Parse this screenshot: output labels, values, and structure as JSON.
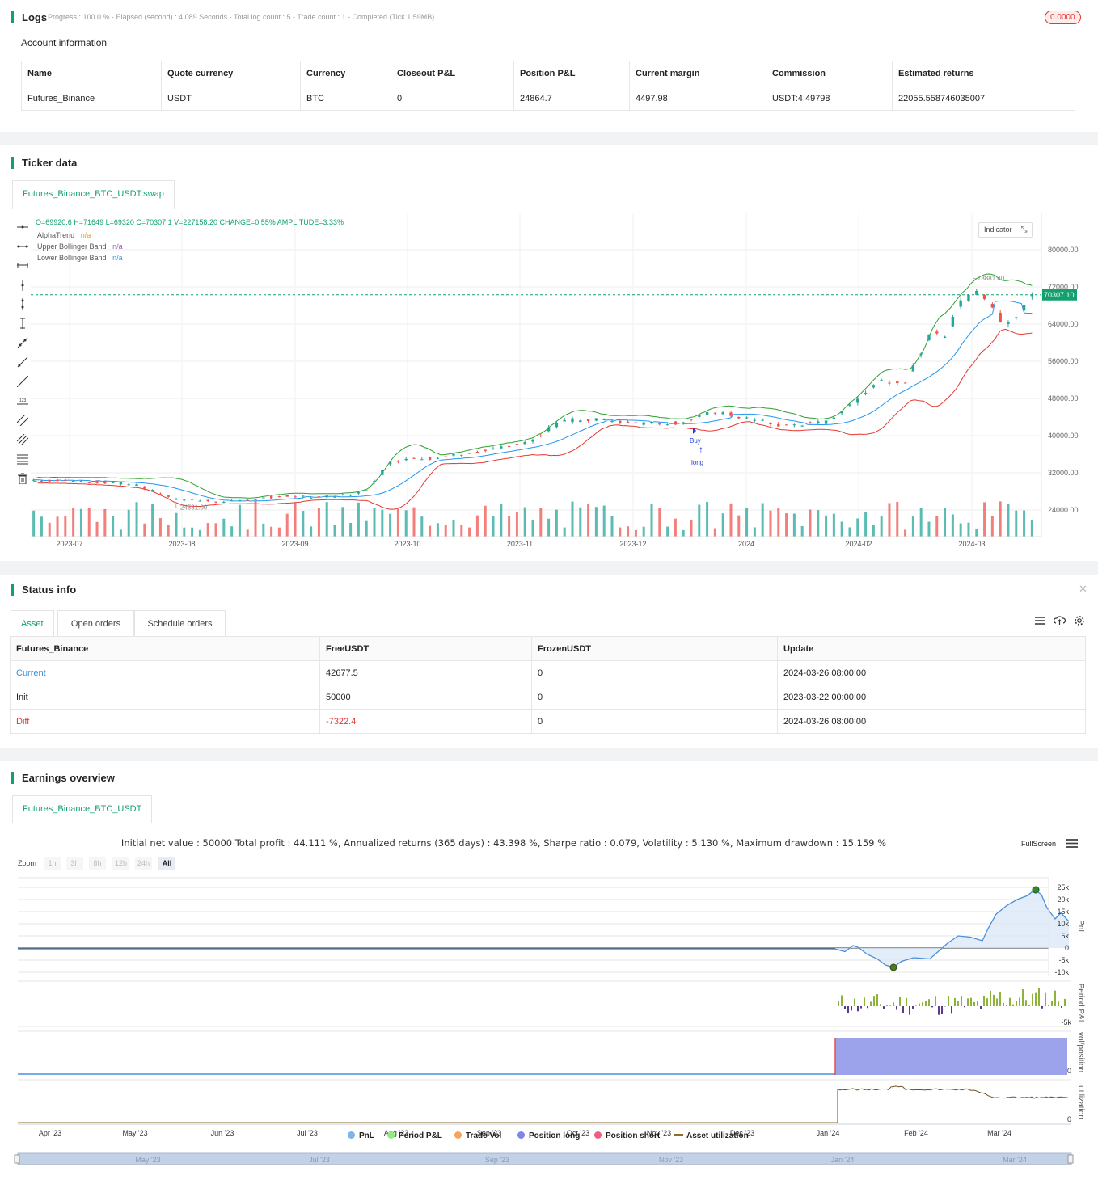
{
  "logs": {
    "title": "Logs",
    "progress": "Progress : 100.0 % - Elapsed (second) : 4.089 Seconds - Total log count : 5 - Trade count : 1 - Completed (Tick 1.59MB)",
    "badge": "0.0000"
  },
  "account": {
    "title": "Account information",
    "columns": [
      "Name",
      "Quote currency",
      "Currency",
      "Closeout P&L",
      "Position P&L",
      "Current margin",
      "Commission",
      "Estimated returns"
    ],
    "row": [
      "Futures_Binance",
      "USDT",
      "BTC",
      "0",
      "24864.7",
      "4497.98",
      "USDT:4.49798",
      "22055.558746035007"
    ]
  },
  "ticker": {
    "title": "Ticker data",
    "tab": "Futures_Binance_BTC_USDT:swap",
    "ohlc": "O=69920.6 H=71649 L=69320 C=70307.1 V=227158.20 CHANGE=0.55% AMPLITUDE=3.33%",
    "indicators": [
      {
        "name": "AlphaTrend",
        "value": "n/a",
        "color": "#f39c12"
      },
      {
        "name": "Upper Bollinger Band",
        "value": "n/a",
        "color": "#9b59b6"
      },
      {
        "name": "Lower Bollinger Band",
        "value": "n/a",
        "color": "#3498db"
      }
    ],
    "indicator_button": "Indicator",
    "price_tag": "70307.10",
    "price_ticks": [
      "80000.00",
      "72000.00",
      "64000.00",
      "56000.00",
      "48000.00",
      "40000.00",
      "32000.00",
      "24000.00"
    ],
    "date_ticks": [
      "2023-07",
      "2023-08",
      "2023-09",
      "2023-10",
      "2023-11",
      "2023-12",
      "2024",
      "2024-02",
      "2024-03"
    ],
    "annotations": {
      "high": "73881.40",
      "low": "24581.00",
      "buy": "Buy",
      "long": "long"
    },
    "colors": {
      "up": "#26a69a",
      "down": "#ef5350",
      "upper": "#2ca02c",
      "lower": "#e53935",
      "trend": "#2196f3"
    }
  },
  "status": {
    "title": "Status info",
    "tabs": [
      "Asset",
      "Open orders",
      "Schedule orders"
    ],
    "columns": [
      "Futures_Binance",
      "FreeUSDT",
      "FrozenUSDT",
      "Update"
    ],
    "rows": [
      [
        "Current",
        "42677.5",
        "0",
        "2024-03-26 08:00:00"
      ],
      [
        "Init",
        "50000",
        "0",
        "2023-03-22 00:00:00"
      ],
      [
        "Diff",
        "-7322.4",
        "0",
        "2024-03-26 08:00:00"
      ]
    ]
  },
  "earnings": {
    "title": "Earnings overview",
    "tab": "Futures_Binance_BTC_USDT",
    "summary": "Initial net value : 50000 Total profit : 44.111 %, Annualized returns (365 days) : 43.398 %, Sharpe ratio : 0.079, Volatility : 5.130 %, Maximum drawdown : 15.159 %",
    "fullscreen": "FullScreen",
    "zoom_label": "Zoom",
    "zoom_buttons": [
      "1h",
      "3h",
      "8h",
      "12h",
      "24h",
      "All"
    ],
    "pnl_ticks": [
      "25k",
      "20k",
      "15k",
      "10k",
      "5k",
      "0",
      "-5k",
      "-10k"
    ],
    "period_ticks": [
      "-5k"
    ],
    "axis_labels": [
      "PnL",
      "Period P&L",
      "vol/position",
      "utilization"
    ],
    "util_ticks": [
      "0",
      "0"
    ],
    "x_ticks": [
      "Apr '23",
      "May '23",
      "Jun '23",
      "Jul '23",
      "Aug '23",
      "Sep '23",
      "Oct '23",
      "Nov '23",
      "Dec '23",
      "Jan '24",
      "Feb '24",
      "Mar '24"
    ],
    "nav_ticks": [
      "May '23",
      "Jul '23",
      "Sep '23",
      "Nov '23",
      "Jan '24",
      "Mar '24"
    ],
    "legend": [
      {
        "name": "PnL",
        "color": "#7cb5ec"
      },
      {
        "name": "Period P&L",
        "color": "#90ed7d"
      },
      {
        "name": "Trade Vol",
        "color": "#f7a35c"
      },
      {
        "name": "Position long",
        "color": "#8085e9"
      },
      {
        "name": "Position short",
        "color": "#f15c80"
      },
      {
        "name": "Asset utilization",
        "color": "#8d6e2f"
      }
    ]
  }
}
